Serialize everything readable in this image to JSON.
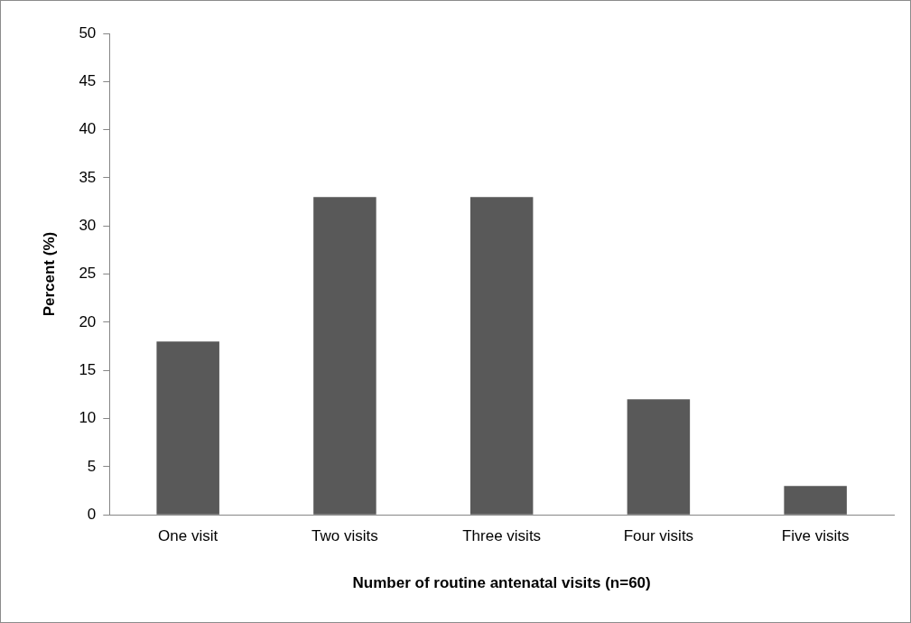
{
  "chart_data": {
    "type": "bar",
    "xlabel": "Number of routine antenatal visits (n=60)",
    "ylabel": "Percent (%)",
    "categories": [
      "One visit",
      "Two visits",
      "Three visits",
      "Four visits",
      "Five visits"
    ],
    "values": [
      18,
      33,
      33,
      12,
      3
    ],
    "color": "#595959",
    "ylim": [
      0,
      50
    ],
    "yticks": [
      0,
      5,
      10,
      15,
      20,
      25,
      30,
      35,
      40,
      45,
      50
    ],
    "grid": false
  }
}
